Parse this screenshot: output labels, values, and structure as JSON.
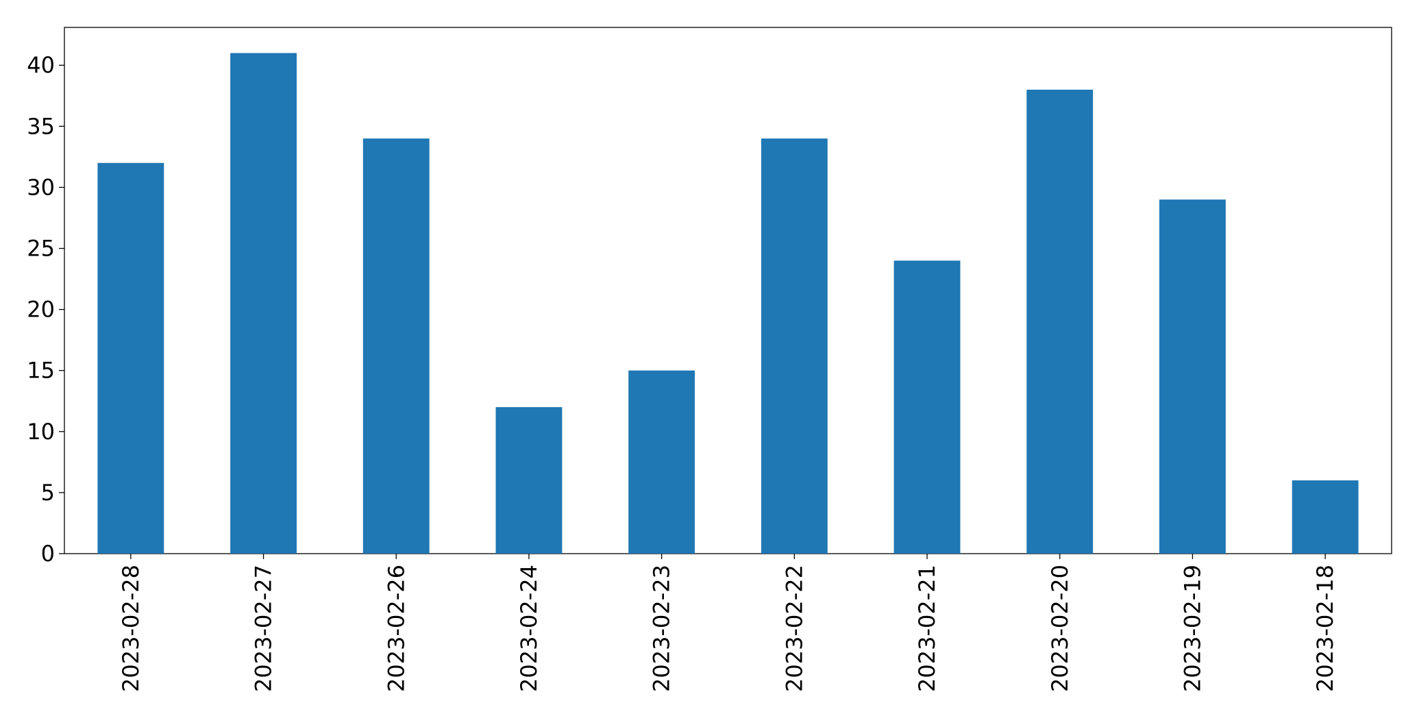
{
  "chart_data": {
    "type": "bar",
    "categories": [
      "2023-02-28",
      "2023-02-27",
      "2023-02-26",
      "2023-02-24",
      "2023-02-23",
      "2023-02-22",
      "2023-02-21",
      "2023-02-20",
      "2023-02-19",
      "2023-02-18"
    ],
    "values": [
      32,
      41,
      34,
      12,
      15,
      34,
      24,
      38,
      29,
      6
    ],
    "color": "#1f77b4",
    "ylim": [
      0,
      43.1
    ],
    "yticks": [
      0,
      5,
      10,
      15,
      20,
      25,
      30,
      35,
      40
    ],
    "grid": false
  }
}
